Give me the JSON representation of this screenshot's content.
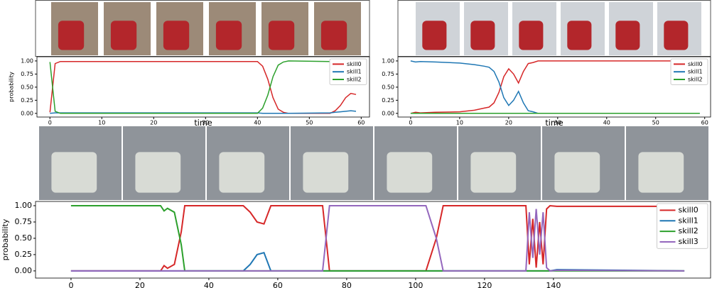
{
  "chart_data": [
    {
      "type": "line",
      "xlabel": "time",
      "ylabel": "probability",
      "x": [
        0,
        1,
        2,
        40,
        41,
        42,
        43,
        44,
        45,
        46,
        54,
        55,
        56,
        57,
        58,
        59
      ],
      "series": [
        {
          "name": "skill0",
          "color": "#d62728",
          "values": [
            0.02,
            0.95,
            0.99,
            0.99,
            0.9,
            0.65,
            0.3,
            0.08,
            0.02,
            0,
            0,
            0.05,
            0.15,
            0.3,
            0.38,
            0.36
          ]
        },
        {
          "name": "skill1",
          "color": "#1f77b4",
          "values": [
            0,
            0.01,
            0.01,
            0.01,
            0,
            0,
            0,
            0,
            0,
            0,
            0.01,
            0.02,
            0.03,
            0.04,
            0.05,
            0.04
          ]
        },
        {
          "name": "skill2",
          "color": "#2ca02c",
          "values": [
            0.98,
            0.04,
            0,
            0,
            0.1,
            0.35,
            0.7,
            0.92,
            0.98,
            1,
            0.99,
            0.93,
            0.82,
            0.66,
            0.57,
            0.6
          ]
        }
      ],
      "xlim": [
        -2.5,
        61.6
      ],
      "xticks": [
        0,
        10,
        20,
        30,
        40,
        50,
        60
      ],
      "ylim": [
        -0.07,
        1.08
      ],
      "yticks": [
        {
          "value": 0,
          "label": "0.00"
        },
        {
          "value": 0.25,
          "label": "0.25"
        },
        {
          "value": 0.5,
          "label": "0.50"
        },
        {
          "value": 0.75,
          "label": "0.75"
        },
        {
          "value": 1,
          "label": "1.00"
        }
      ],
      "legend": "upper right"
    },
    {
      "type": "line",
      "xlabel": "time",
      "x": [
        0,
        1,
        2,
        5,
        10,
        13,
        15,
        16,
        17,
        18,
        19,
        20,
        21,
        22,
        23,
        24,
        25,
        26,
        59
      ],
      "series": [
        {
          "name": "skill0",
          "color": "#d62728",
          "values": [
            0,
            0.02,
            0.01,
            0.02,
            0.03,
            0.06,
            0.1,
            0.12,
            0.2,
            0.4,
            0.7,
            0.85,
            0.75,
            0.58,
            0.8,
            0.95,
            0.97,
            1,
            1
          ]
        },
        {
          "name": "skill1",
          "color": "#1f77b4",
          "values": [
            1,
            0.98,
            0.99,
            0.98,
            0.96,
            0.93,
            0.9,
            0.88,
            0.8,
            0.6,
            0.3,
            0.15,
            0.25,
            0.42,
            0.2,
            0.05,
            0.03,
            0,
            0
          ]
        },
        {
          "name": "skill2",
          "color": "#2ca02c",
          "values": [
            0,
            0,
            0,
            0,
            0,
            0,
            0,
            0,
            0,
            0,
            0,
            0,
            0,
            0,
            0,
            0,
            0,
            0,
            0
          ]
        }
      ],
      "xlim": [
        -2.6,
        61.2
      ],
      "xticks": [
        0,
        10,
        20,
        30,
        40,
        50,
        60
      ],
      "ylim": [
        -0.07,
        1.08
      ],
      "yticks": [
        {
          "value": 0,
          "label": "0.00"
        },
        {
          "value": 0.25,
          "label": "0.25"
        },
        {
          "value": 0.5,
          "label": "0.50"
        },
        {
          "value": 0.75,
          "label": "0.75"
        },
        {
          "value": 1,
          "label": "1.00"
        }
      ],
      "legend": "upper right"
    },
    {
      "type": "line",
      "ylabel": "probability",
      "x": [
        0,
        26,
        27,
        28,
        30,
        32,
        33,
        50,
        52,
        54,
        56,
        58,
        73,
        75,
        103,
        106,
        108,
        132,
        133,
        134,
        135,
        136,
        137,
        138,
        139,
        141,
        178
      ],
      "series": [
        {
          "name": "skill0",
          "color": "#d62728",
          "values": [
            0,
            0,
            0.08,
            0.04,
            0.1,
            0.6,
            1,
            1,
            0.9,
            0.75,
            0.72,
            1,
            1,
            0,
            0,
            0.5,
            1,
            1,
            0.1,
            0.8,
            0.05,
            0.75,
            0.1,
            0.95,
            1,
            0.99,
            0.99
          ]
        },
        {
          "name": "skill1",
          "color": "#1f77b4",
          "values": [
            0,
            0,
            0,
            0,
            0,
            0,
            0,
            0,
            0.1,
            0.25,
            0.28,
            0,
            0,
            0,
            0,
            0,
            0,
            0,
            0,
            0,
            0,
            0,
            0,
            0,
            0,
            0.02,
            0
          ]
        },
        {
          "name": "skill2",
          "color": "#2ca02c",
          "values": [
            1,
            1,
            0.92,
            0.96,
            0.9,
            0.4,
            0,
            0,
            0,
            0,
            0,
            0,
            0,
            0,
            0,
            0,
            0,
            0,
            0,
            0,
            0,
            0,
            0,
            0,
            0,
            0,
            0
          ]
        },
        {
          "name": "skill3",
          "color": "#9467bd",
          "values": [
            0,
            0,
            0,
            0,
            0,
            0,
            0,
            0,
            0,
            0,
            0,
            0,
            0,
            1,
            1,
            0.5,
            0,
            0,
            0.9,
            0.2,
            0.95,
            0.25,
            0.9,
            0.05,
            0,
            0.01,
            0
          ]
        }
      ],
      "xlim": [
        -10.3,
        185.6
      ],
      "xticks": [
        0,
        20,
        40,
        60,
        80,
        100,
        120,
        140
      ],
      "ylim": [
        -0.11,
        1.065
      ],
      "yticks": [
        {
          "value": 0,
          "label": "0.00"
        },
        {
          "value": 0.25,
          "label": "0.25"
        },
        {
          "value": 0.5,
          "label": "0.50"
        },
        {
          "value": 0.75,
          "label": "0.75"
        },
        {
          "value": 1,
          "label": "1.00"
        }
      ],
      "legend": "upper right"
    }
  ]
}
